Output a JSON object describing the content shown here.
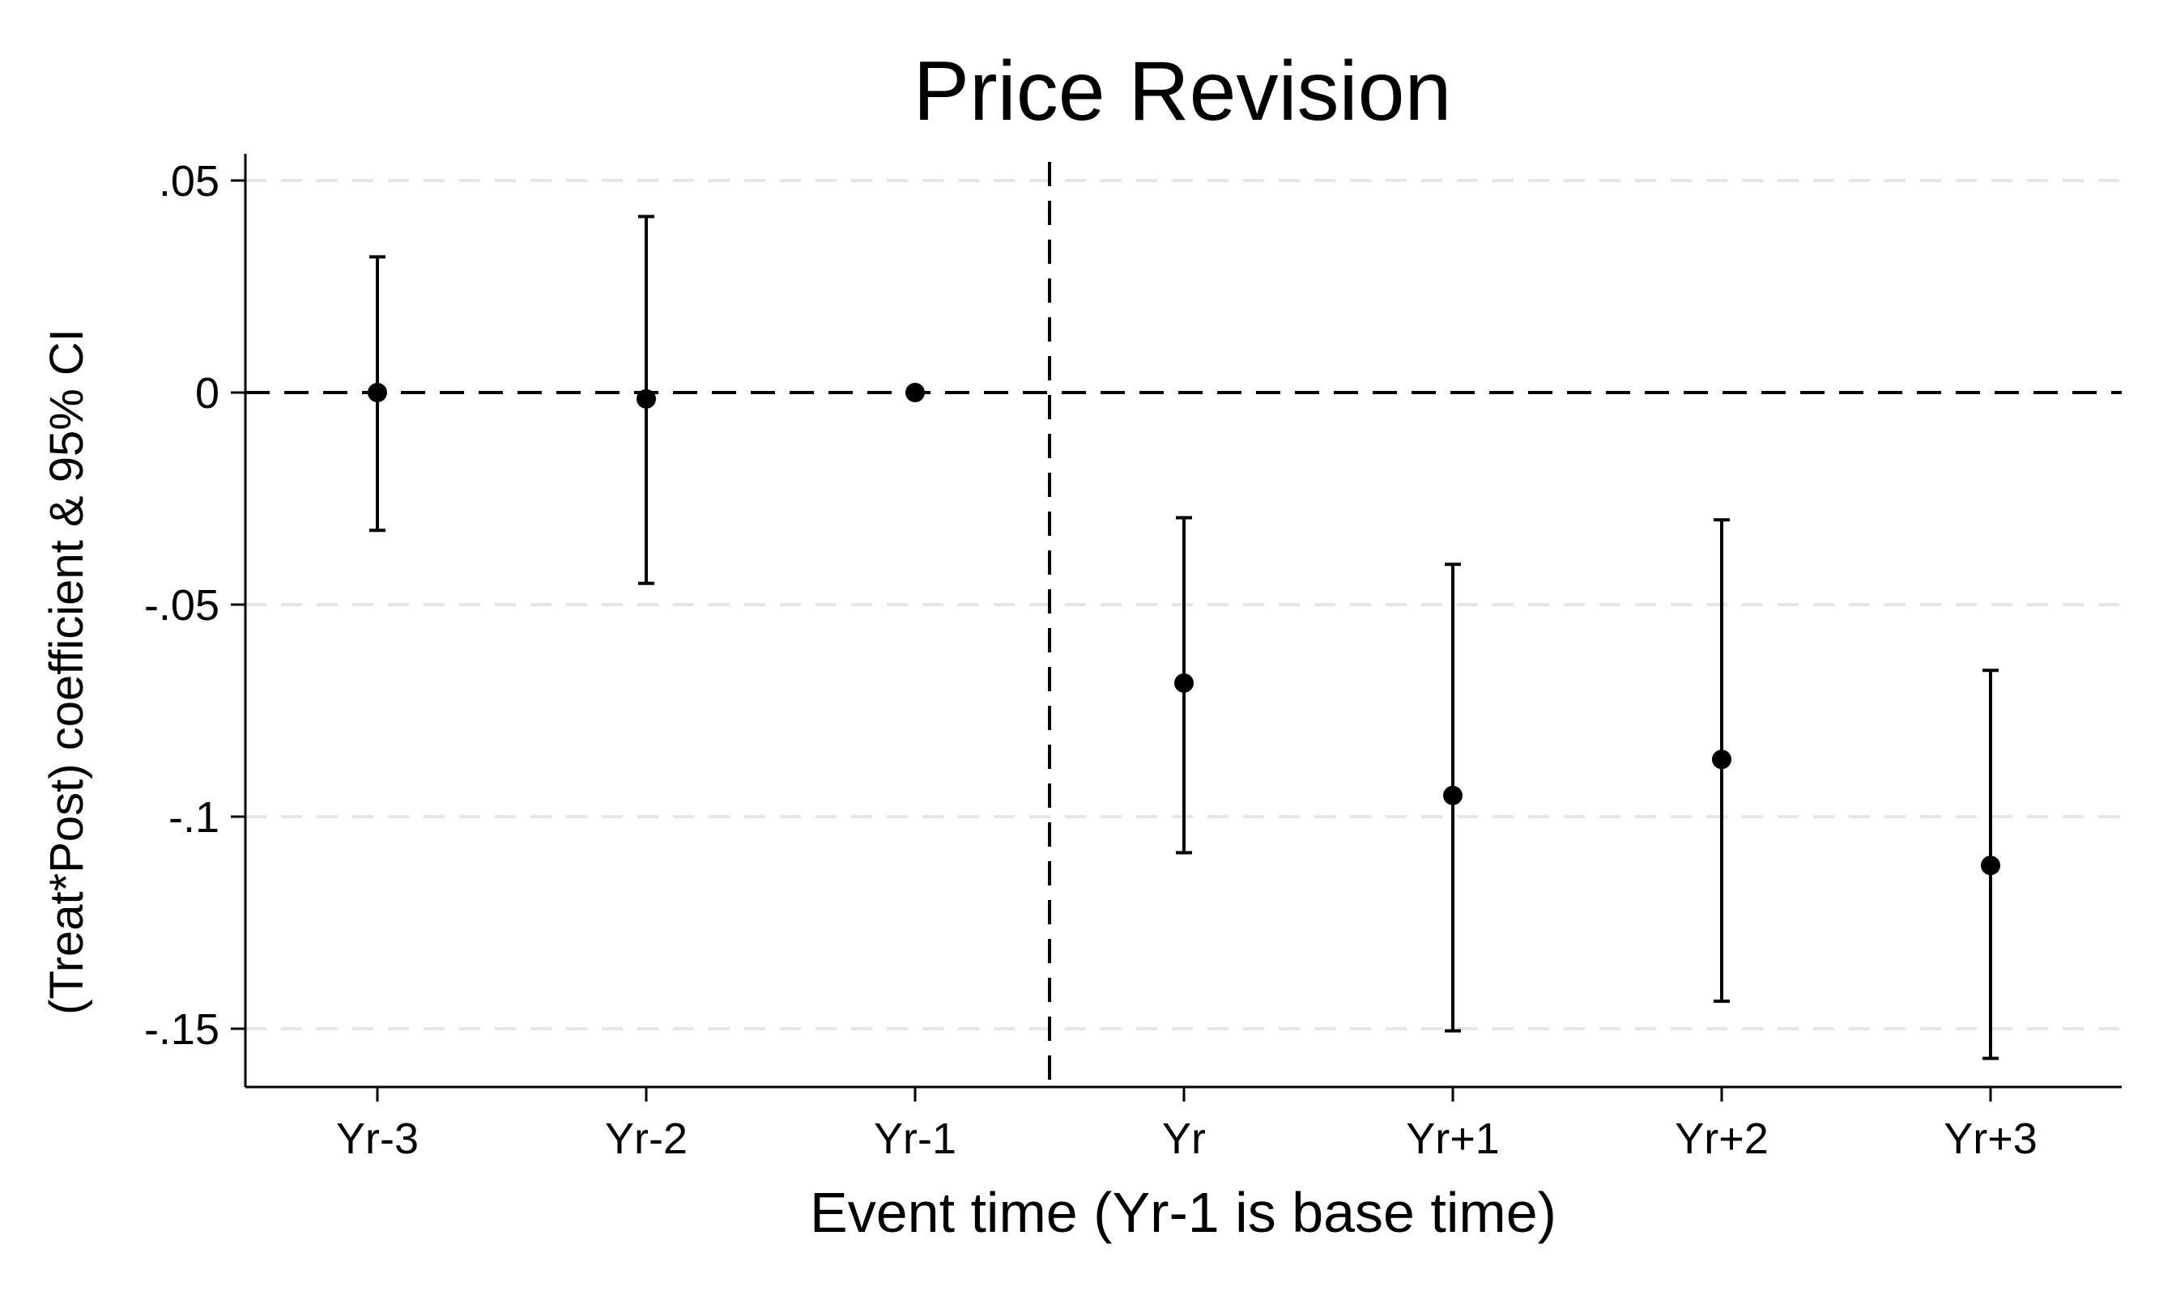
{
  "chart_data": {
    "type": "scatter",
    "title": "Price Revision",
    "xlabel": "Event time (Yr-1 is base time)",
    "ylabel": "(Treat*Post) coefficient & 95% CI",
    "categories": [
      "Yr-3",
      "Yr-2",
      "Yr-1",
      "Yr",
      "Yr+1",
      "Yr+2",
      "Yr+3"
    ],
    "series": [
      {
        "values": [
          0.0,
          -0.0015,
          0.0,
          -0.0685,
          -0.095,
          -0.0865,
          -0.1115
        ],
        "ci_lower": [
          -0.0325,
          -0.045,
          null,
          -0.1085,
          -0.1505,
          -0.1435,
          -0.157
        ],
        "ci_upper": [
          0.032,
          0.0415,
          null,
          -0.0295,
          -0.0405,
          -0.03,
          -0.0655
        ]
      }
    ],
    "ylim": [
      -0.164,
      0.057
    ],
    "yticks": [
      0.05,
      0,
      -0.05,
      -0.1,
      -0.15
    ],
    "ytick_labels": [
      ".05",
      "0",
      "-.05",
      "-.1",
      "-.15"
    ],
    "reference_lines": {
      "horizontal_y": 0,
      "vertical_between": [
        "Yr-1",
        "Yr"
      ],
      "style": "dashed"
    },
    "grid": true,
    "legend": "none",
    "colors": {
      "marker": "#000000",
      "gridline": "#e6e6e6",
      "background": "#ffffff"
    }
  }
}
